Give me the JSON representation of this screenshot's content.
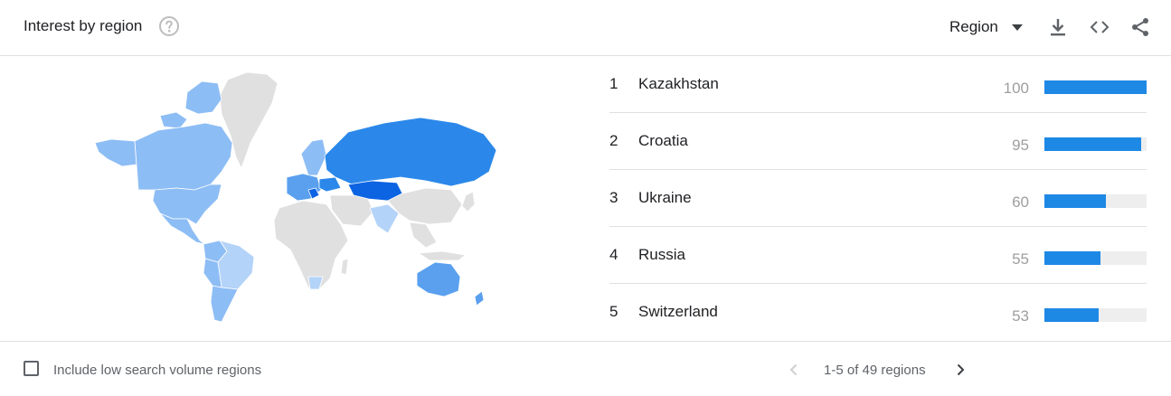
{
  "header": {
    "title": "Interest by region",
    "help_icon": "help-circle-icon",
    "region_select": {
      "selected": "Region",
      "icon": "arrow-drop-down-icon"
    },
    "tools": [
      "download-icon",
      "embed-code-icon",
      "share-icon"
    ]
  },
  "map": {
    "colors": {
      "high": "#0d64e3",
      "mid": "#2b88ea",
      "mid_low": "#5aa0ef",
      "low": "#8dbdf5",
      "lowest": "#b4d3f8",
      "none": "#e0e0e0"
    }
  },
  "regions": [
    {
      "rank": "1",
      "name": "Kazakhstan",
      "value": "100",
      "fraction": 1.0
    },
    {
      "rank": "2",
      "name": "Croatia",
      "value": "95",
      "fraction": 0.95
    },
    {
      "rank": "3",
      "name": "Ukraine",
      "value": "60",
      "fraction": 0.6
    },
    {
      "rank": "4",
      "name": "Russia",
      "value": "55",
      "fraction": 0.55
    },
    {
      "rank": "5",
      "name": "Switzerland",
      "value": "53",
      "fraction": 0.53
    }
  ],
  "footer": {
    "checkbox_label": "Include low search volume regions",
    "checked": false,
    "pagination": "1-5 of 49 regions"
  },
  "bar_color": "#1e88e5"
}
